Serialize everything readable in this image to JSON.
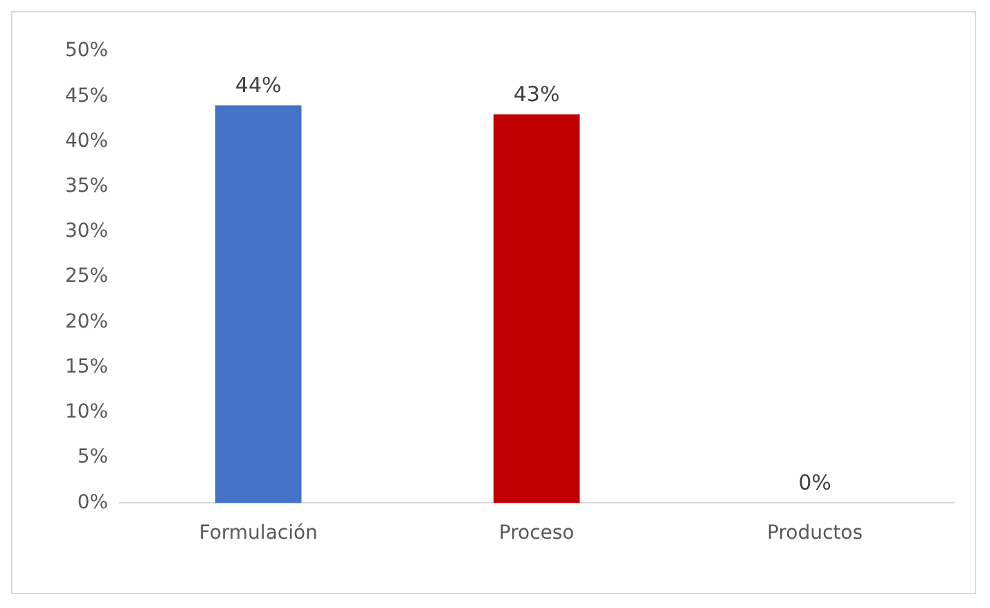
{
  "chart_data": {
    "type": "bar",
    "categories": [
      "Formulación",
      "Proceso",
      "Productos"
    ],
    "values": [
      44,
      43,
      0
    ],
    "colors": [
      "#4472c4",
      "#c00000",
      "#a5a5a5"
    ],
    "value_labels": [
      "44%",
      "43%",
      "0%"
    ],
    "ylim": [
      0,
      50
    ],
    "yticks": [
      {
        "value": 0,
        "label": "0%"
      },
      {
        "value": 5,
        "label": "5%"
      },
      {
        "value": 10,
        "label": "10%"
      },
      {
        "value": 15,
        "label": "15%"
      },
      {
        "value": 20,
        "label": "20%"
      },
      {
        "value": 25,
        "label": "25%"
      },
      {
        "value": 30,
        "label": "30%"
      },
      {
        "value": 35,
        "label": "35%"
      },
      {
        "value": 40,
        "label": "40%"
      },
      {
        "value": 45,
        "label": "45%"
      },
      {
        "value": 50,
        "label": "50%"
      }
    ],
    "grid": false,
    "legend": false
  }
}
